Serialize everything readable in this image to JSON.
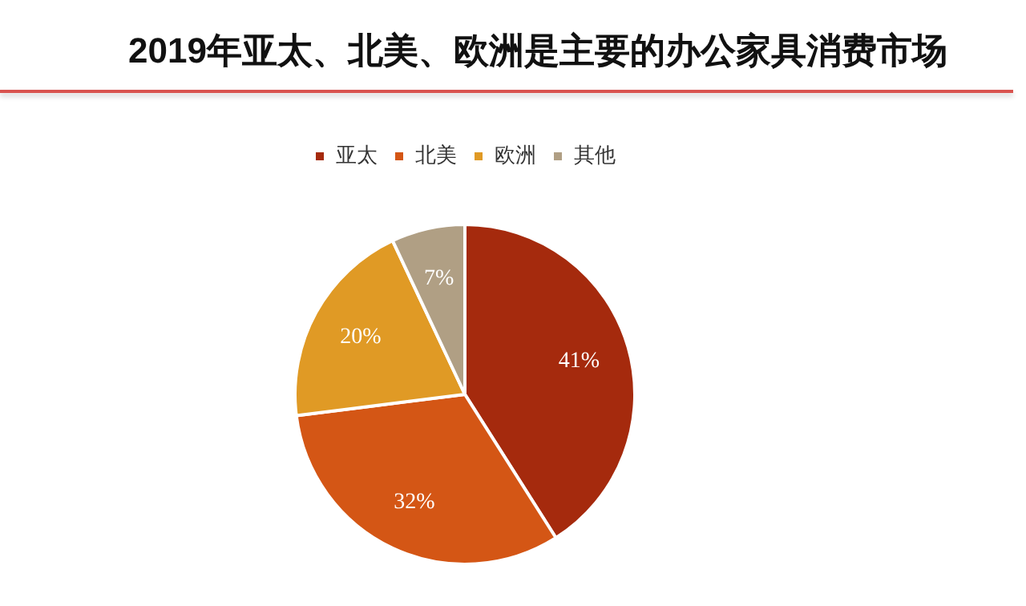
{
  "chart_data": {
    "type": "pie",
    "title": "2019年亚太、北美、欧洲是主要的办公家具消费市场",
    "categories": [
      "亚太",
      "北美",
      "欧洲",
      "其他"
    ],
    "values": [
      41,
      32,
      20,
      7
    ],
    "value_labels": [
      "41%",
      "32%",
      "20%",
      "7%"
    ],
    "colors": [
      "#a52a0d",
      "#d45615",
      "#e09a25",
      "#b09f84"
    ],
    "legend": "top"
  }
}
